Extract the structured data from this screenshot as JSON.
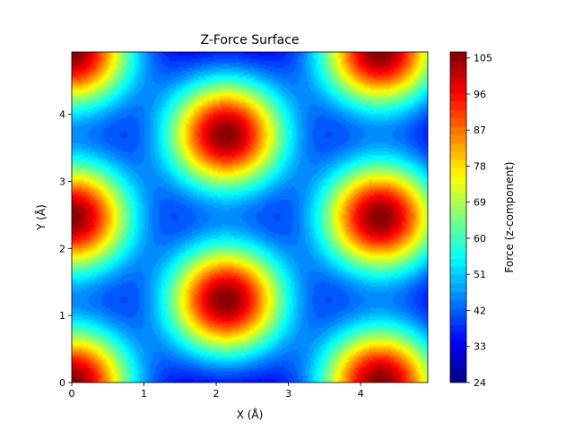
{
  "chart_data": {
    "type": "heatmap",
    "title": "Z-Force Surface",
    "xlabel": "X (Å)",
    "ylabel": "Y (Å)",
    "colorbar_label": "Force (z-component)",
    "xlim": [
      0,
      4.93
    ],
    "ylim": [
      0,
      4.93
    ],
    "xticks": [
      "0",
      "1",
      "2",
      "3",
      "4"
    ],
    "yticks": [
      "0",
      "1",
      "2",
      "3",
      "4"
    ],
    "colorbar_range": [
      24,
      106.5
    ],
    "colorbar_ticks": [
      "24",
      "33",
      "42",
      "51",
      "60",
      "69",
      "78",
      "87",
      "96",
      "105"
    ],
    "colormap": "jet",
    "background_value": 27,
    "peaks": [
      {
        "x": 0.0,
        "y": 0.0,
        "value": 106
      },
      {
        "x": 4.27,
        "y": 0.0,
        "value": 106
      },
      {
        "x": 2.135,
        "y": 1.233,
        "value": 106
      },
      {
        "x": 0.0,
        "y": 2.466,
        "value": 106
      },
      {
        "x": 4.27,
        "y": 2.466,
        "value": 106
      },
      {
        "x": 2.135,
        "y": 3.699,
        "value": 106
      },
      {
        "x": 0.0,
        "y": 4.932,
        "value": 106
      },
      {
        "x": 4.27,
        "y": 4.932,
        "value": 106
      }
    ],
    "peak_radius": 0.84,
    "grid": false
  }
}
